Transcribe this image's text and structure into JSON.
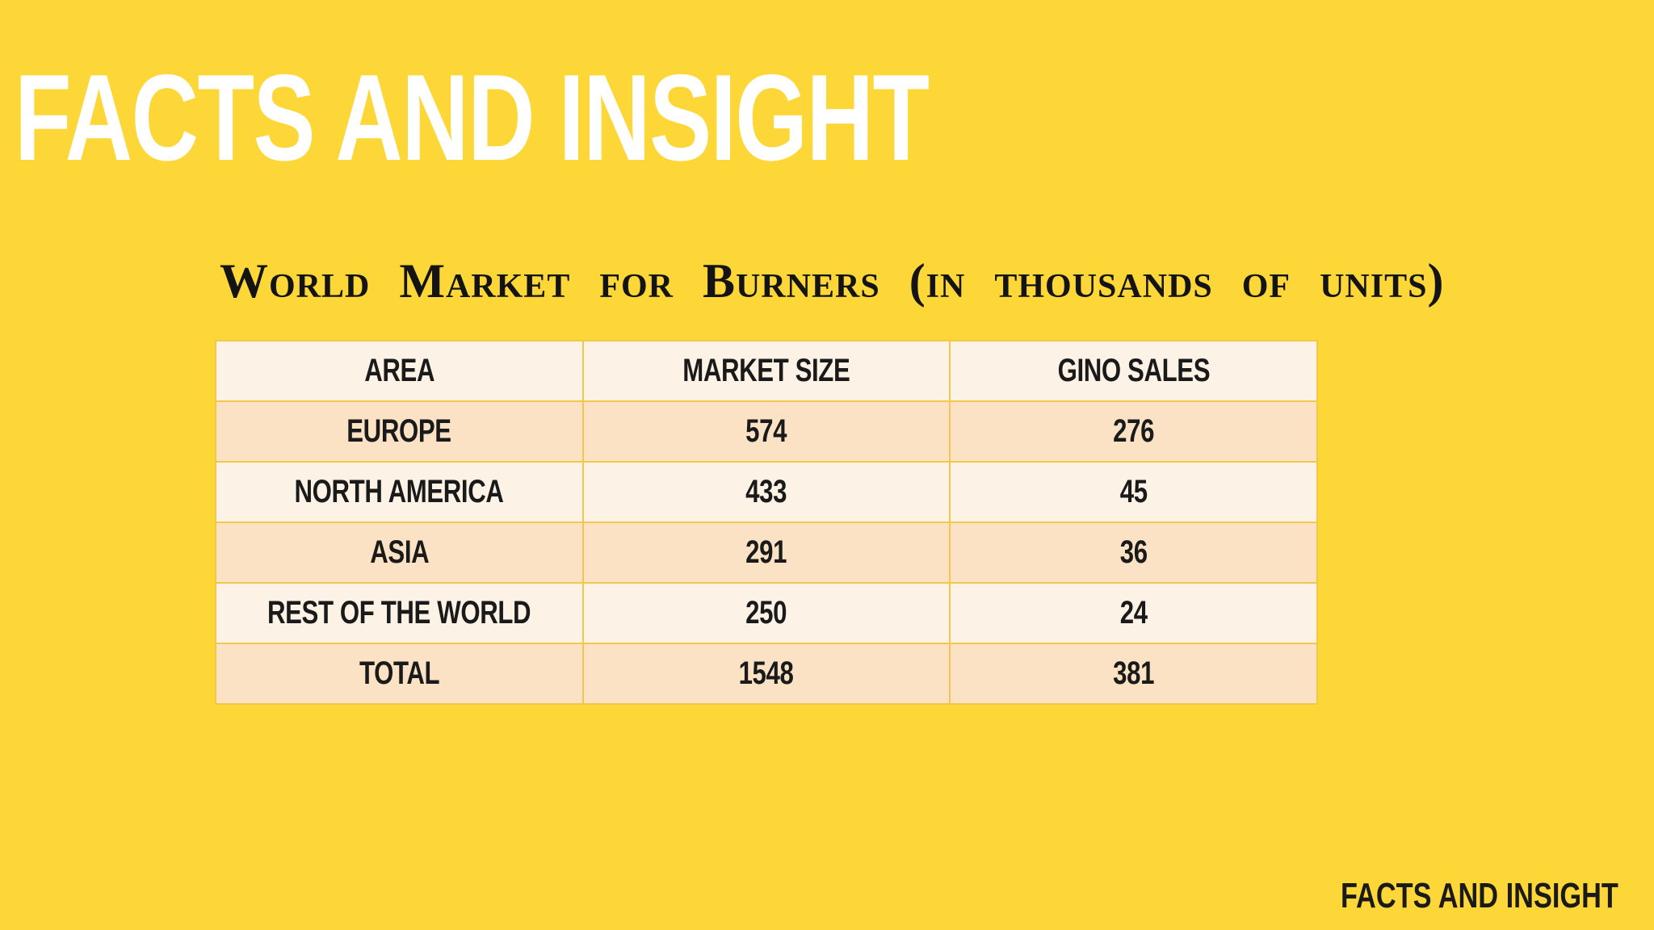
{
  "slide": {
    "title": "FACTS AND INSIGHT",
    "background_color": "#fdd637",
    "table_heading": "World Market for Burners (in thousands of units)",
    "footer_brand": "FACTS AND INSIGHT"
  },
  "table": {
    "columns": [
      "AREA",
      "MARKET SIZE",
      "GINO SALES"
    ],
    "rows": [
      {
        "area": "EUROPE",
        "market_size": "574",
        "gino_sales": "276"
      },
      {
        "area": "NORTH AMERICA",
        "market_size": "433",
        "gino_sales": "45"
      },
      {
        "area": "ASIA",
        "market_size": "291",
        "gino_sales": "36"
      },
      {
        "area": "REST OF THE WORLD",
        "market_size": "250",
        "gino_sales": "24"
      },
      {
        "area": "TOTAL",
        "market_size": "1548",
        "gino_sales": "381"
      }
    ]
  }
}
